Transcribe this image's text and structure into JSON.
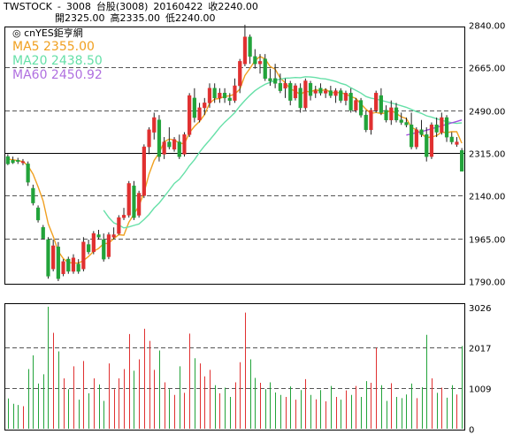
{
  "header": {
    "source": "TWSTOCK",
    "sep": "-",
    "code": "3008",
    "name": "台股(3008)",
    "date": "20160422",
    "close_label": "收2240.00",
    "open_label": "開2325.00",
    "high_label": "高2335.00",
    "low_label": "低2240.00"
  },
  "watermark": "cnYES鉅亨網",
  "legend": [
    {
      "name": "MA5",
      "value": "2355.00",
      "color": "#f0a020"
    },
    {
      "name": "MA20",
      "value": "2438.50",
      "color": "#66e0a8"
    },
    {
      "name": "MA60",
      "value": "2450.92",
      "color": "#b070e0"
    }
  ],
  "colors": {
    "up": "#e03030",
    "down": "#22a33a",
    "grid": "#555555",
    "ma5": "#f0a020",
    "ma20": "#66e0a8",
    "ma60": "#a050e0"
  },
  "chart_data": [
    {
      "type": "candlestick",
      "title": "台股(3008)",
      "y_ticks": [
        "2840.00",
        "2665.00",
        "2490.00",
        "2315.00",
        "2140.00",
        "1965.00",
        "1790.00"
      ],
      "ylim": [
        1790,
        2840
      ],
      "grid": true,
      "candles": [
        {
          "o": 2300,
          "h": 2310,
          "l": 2265,
          "c": 2270
        },
        {
          "o": 2285,
          "h": 2300,
          "l": 2270,
          "c": 2275
        },
        {
          "o": 2285,
          "h": 2295,
          "l": 2270,
          "c": 2280
        },
        {
          "o": 2275,
          "h": 2290,
          "l": 2265,
          "c": 2280
        },
        {
          "o": 2270,
          "h": 2280,
          "l": 2180,
          "c": 2195
        },
        {
          "o": 2170,
          "h": 2185,
          "l": 2100,
          "c": 2110
        },
        {
          "o": 2090,
          "h": 2100,
          "l": 2030,
          "c": 2040
        },
        {
          "o": 2010,
          "h": 2020,
          "l": 1960,
          "c": 1965
        },
        {
          "o": 1960,
          "h": 1970,
          "l": 1800,
          "c": 1810
        },
        {
          "o": 1840,
          "h": 1960,
          "l": 1830,
          "c": 1935
        },
        {
          "o": 1930,
          "h": 1950,
          "l": 1790,
          "c": 1800
        },
        {
          "o": 1820,
          "h": 1880,
          "l": 1810,
          "c": 1870
        },
        {
          "o": 1880,
          "h": 1890,
          "l": 1820,
          "c": 1830
        },
        {
          "o": 1830,
          "h": 1900,
          "l": 1820,
          "c": 1885
        },
        {
          "o": 1860,
          "h": 1880,
          "l": 1820,
          "c": 1830
        },
        {
          "o": 1840,
          "h": 1970,
          "l": 1830,
          "c": 1950
        },
        {
          "o": 1940,
          "h": 1960,
          "l": 1900,
          "c": 1910
        },
        {
          "o": 1910,
          "h": 1995,
          "l": 1900,
          "c": 1985
        },
        {
          "o": 1980,
          "h": 2000,
          "l": 1960,
          "c": 1970
        },
        {
          "o": 1960,
          "h": 1985,
          "l": 1870,
          "c": 1880
        },
        {
          "o": 1890,
          "h": 1990,
          "l": 1880,
          "c": 1980
        },
        {
          "o": 1970,
          "h": 2010,
          "l": 1960,
          "c": 1980
        },
        {
          "o": 1985,
          "h": 2060,
          "l": 1980,
          "c": 2050
        },
        {
          "o": 2050,
          "h": 2090,
          "l": 2040,
          "c": 2060
        },
        {
          "o": 2060,
          "h": 2200,
          "l": 2050,
          "c": 2190
        },
        {
          "o": 2180,
          "h": 2200,
          "l": 2040,
          "c": 2050
        },
        {
          "o": 2060,
          "h": 2160,
          "l": 2050,
          "c": 2150
        },
        {
          "o": 2140,
          "h": 2350,
          "l": 2130,
          "c": 2340
        },
        {
          "o": 2340,
          "h": 2420,
          "l": 2310,
          "c": 2410
        },
        {
          "o": 2400,
          "h": 2480,
          "l": 2370,
          "c": 2460
        },
        {
          "o": 2450,
          "h": 2470,
          "l": 2280,
          "c": 2300
        },
        {
          "o": 2310,
          "h": 2380,
          "l": 2290,
          "c": 2360
        },
        {
          "o": 2360,
          "h": 2420,
          "l": 2330,
          "c": 2340
        },
        {
          "o": 2330,
          "h": 2380,
          "l": 2320,
          "c": 2370
        },
        {
          "o": 2360,
          "h": 2390,
          "l": 2290,
          "c": 2300
        },
        {
          "o": 2310,
          "h": 2400,
          "l": 2300,
          "c": 2390
        },
        {
          "o": 2390,
          "h": 2560,
          "l": 2380,
          "c": 2550
        },
        {
          "o": 2540,
          "h": 2580,
          "l": 2440,
          "c": 2460
        },
        {
          "o": 2450,
          "h": 2520,
          "l": 2440,
          "c": 2500
        },
        {
          "o": 2500,
          "h": 2540,
          "l": 2470,
          "c": 2520
        },
        {
          "o": 2520,
          "h": 2600,
          "l": 2500,
          "c": 2580
        },
        {
          "o": 2580,
          "h": 2600,
          "l": 2520,
          "c": 2540
        },
        {
          "o": 2540,
          "h": 2580,
          "l": 2520,
          "c": 2560
        },
        {
          "o": 2560,
          "h": 2580,
          "l": 2520,
          "c": 2540
        },
        {
          "o": 2540,
          "h": 2560,
          "l": 2510,
          "c": 2530
        },
        {
          "o": 2530,
          "h": 2620,
          "l": 2520,
          "c": 2590
        },
        {
          "o": 2590,
          "h": 2700,
          "l": 2560,
          "c": 2690
        },
        {
          "o": 2680,
          "h": 2840,
          "l": 2670,
          "c": 2790
        },
        {
          "o": 2790,
          "h": 2800,
          "l": 2680,
          "c": 2710
        },
        {
          "o": 2710,
          "h": 2740,
          "l": 2660,
          "c": 2680
        },
        {
          "o": 2680,
          "h": 2720,
          "l": 2640,
          "c": 2690
        },
        {
          "o": 2700,
          "h": 2720,
          "l": 2610,
          "c": 2620
        },
        {
          "o": 2620,
          "h": 2660,
          "l": 2590,
          "c": 2610
        },
        {
          "o": 2620,
          "h": 2680,
          "l": 2580,
          "c": 2600
        },
        {
          "o": 2600,
          "h": 2640,
          "l": 2560,
          "c": 2570
        },
        {
          "o": 2580,
          "h": 2620,
          "l": 2540,
          "c": 2600
        },
        {
          "o": 2600,
          "h": 2610,
          "l": 2510,
          "c": 2530
        },
        {
          "o": 2540,
          "h": 2600,
          "l": 2530,
          "c": 2590
        },
        {
          "o": 2580,
          "h": 2600,
          "l": 2480,
          "c": 2500
        },
        {
          "o": 2500,
          "h": 2620,
          "l": 2490,
          "c": 2610
        },
        {
          "o": 2600,
          "h": 2610,
          "l": 2530,
          "c": 2550
        },
        {
          "o": 2560,
          "h": 2590,
          "l": 2540,
          "c": 2570
        },
        {
          "o": 2580,
          "h": 2600,
          "l": 2550,
          "c": 2560
        },
        {
          "o": 2560,
          "h": 2580,
          "l": 2540,
          "c": 2570
        },
        {
          "o": 2570,
          "h": 2590,
          "l": 2540,
          "c": 2550
        },
        {
          "o": 2550,
          "h": 2580,
          "l": 2520,
          "c": 2570
        },
        {
          "o": 2570,
          "h": 2580,
          "l": 2520,
          "c": 2530
        },
        {
          "o": 2530,
          "h": 2570,
          "l": 2510,
          "c": 2560
        },
        {
          "o": 2560,
          "h": 2580,
          "l": 2480,
          "c": 2490
        },
        {
          "o": 2490,
          "h": 2540,
          "l": 2480,
          "c": 2530
        },
        {
          "o": 2530,
          "h": 2540,
          "l": 2460,
          "c": 2470
        },
        {
          "o": 2470,
          "h": 2490,
          "l": 2400,
          "c": 2410
        },
        {
          "o": 2410,
          "h": 2500,
          "l": 2390,
          "c": 2490
        },
        {
          "o": 2490,
          "h": 2570,
          "l": 2480,
          "c": 2560
        },
        {
          "o": 2550,
          "h": 2580,
          "l": 2470,
          "c": 2480
        },
        {
          "o": 2490,
          "h": 2510,
          "l": 2440,
          "c": 2450
        },
        {
          "o": 2450,
          "h": 2530,
          "l": 2430,
          "c": 2500
        },
        {
          "o": 2500,
          "h": 2520,
          "l": 2440,
          "c": 2450
        },
        {
          "o": 2450,
          "h": 2480,
          "l": 2430,
          "c": 2440
        },
        {
          "o": 2440,
          "h": 2460,
          "l": 2420,
          "c": 2430
        },
        {
          "o": 2430,
          "h": 2480,
          "l": 2330,
          "c": 2340
        },
        {
          "o": 2340,
          "h": 2420,
          "l": 2330,
          "c": 2410
        },
        {
          "o": 2410,
          "h": 2450,
          "l": 2380,
          "c": 2390
        },
        {
          "o": 2390,
          "h": 2420,
          "l": 2280,
          "c": 2300
        },
        {
          "o": 2300,
          "h": 2440,
          "l": 2290,
          "c": 2430
        },
        {
          "o": 2430,
          "h": 2460,
          "l": 2380,
          "c": 2400
        },
        {
          "o": 2400,
          "h": 2480,
          "l": 2390,
          "c": 2460
        },
        {
          "o": 2460,
          "h": 2470,
          "l": 2360,
          "c": 2380
        },
        {
          "o": 2380,
          "h": 2400,
          "l": 2350,
          "c": 2360
        },
        {
          "o": 2350,
          "h": 2380,
          "l": 2340,
          "c": 2360
        },
        {
          "o": 2325,
          "h": 2335,
          "l": 2240,
          "c": 2240
        }
      ],
      "ma5": [
        2290,
        2287,
        2283,
        2280,
        2262,
        2228,
        2176,
        2118,
        2025,
        1973,
        1912,
        1882,
        1866,
        1864,
        1864,
        1874,
        1891,
        1912,
        1924,
        1943,
        1945,
        1964,
        1980,
        1978,
        2031,
        2064,
        2098,
        2152,
        2228,
        2284,
        2316,
        2361,
        2372,
        2368,
        2356,
        2352,
        2398,
        2424,
        2444,
        2472,
        2519,
        2536,
        2538,
        2547,
        2549,
        2556,
        2576,
        2632,
        2661,
        2693,
        2710,
        2700,
        2669,
        2658,
        2622,
        2602,
        2577,
        2568,
        2554,
        2568,
        2564,
        2575,
        2568,
        2576,
        2562,
        2562,
        2562,
        2556,
        2546,
        2538,
        2516,
        2494,
        2477,
        2481,
        2476,
        2480,
        2490,
        2477,
        2463,
        2456,
        2420,
        2410,
        2392,
        2378,
        2380,
        2386,
        2400,
        2398,
        2402,
        2402,
        2355
      ],
      "ma20": [
        null,
        null,
        null,
        null,
        null,
        null,
        null,
        null,
        null,
        null,
        null,
        null,
        null,
        null,
        null,
        null,
        null,
        null,
        null,
        2080,
        2051,
        2029,
        2020,
        2008,
        2012,
        2018,
        2024,
        2042,
        2063,
        2089,
        2110,
        2136,
        2163,
        2190,
        2207,
        2233,
        2263,
        2287,
        2318,
        2344,
        2368,
        2393,
        2419,
        2441,
        2460,
        2480,
        2507,
        2530,
        2551,
        2570,
        2584,
        2596,
        2604,
        2612,
        2617,
        2621,
        2622,
        2624,
        2623,
        2627,
        2626,
        2624,
        2620,
        2618,
        2613,
        2608,
        2600,
        2594,
        2582,
        2571,
        2560,
        2546,
        2539,
        2536,
        2530,
        2525,
        2520,
        2514,
        2508,
        2502,
        2493,
        2484,
        2477,
        2467,
        2462,
        2455,
        2449,
        2443,
        2439,
        2436,
        2438
      ],
      "ma60": [
        null,
        null,
        null,
        null,
        null,
        null,
        null,
        null,
        null,
        null,
        null,
        null,
        null,
        null,
        null,
        null,
        null,
        null,
        null,
        null,
        null,
        null,
        null,
        null,
        null,
        null,
        null,
        null,
        null,
        null,
        null,
        null,
        null,
        null,
        null,
        null,
        null,
        null,
        null,
        null,
        null,
        null,
        null,
        null,
        null,
        null,
        null,
        null,
        null,
        null,
        null,
        null,
        null,
        null,
        null,
        null,
        null,
        null,
        null,
        null,
        null,
        null,
        null,
        null,
        null,
        null,
        null,
        null,
        null,
        null,
        null,
        null,
        null,
        null,
        null,
        null,
        null,
        null,
        null,
        2388,
        2393,
        2398,
        2402,
        2408,
        2414,
        2420,
        2426,
        2432,
        2438,
        2444,
        2450
      ]
    },
    {
      "type": "bar",
      "y_ticks": [
        "3026",
        "2017",
        "1009",
        "0"
      ],
      "ylim": [
        0,
        3026
      ],
      "volume": [
        750,
        620,
        590,
        560,
        1480,
        1820,
        1120,
        1350,
        3026,
        2380,
        1920,
        1250,
        980,
        1550,
        720,
        1680,
        880,
        1250,
        1100,
        690,
        1620,
        980,
        1250,
        1480,
        2350,
        1440,
        1720,
        2480,
        2180,
        1460,
        1940,
        1150,
        980,
        840,
        1550,
        890,
        2360,
        1750,
        1620,
        1300,
        1460,
        1080,
        880,
        1020,
        790,
        1150,
        1650,
        2880,
        1720,
        1260,
        1140,
        980,
        1150,
        900,
        840,
        790,
        1050,
        720,
        960,
        1230,
        840,
        730,
        960,
        680,
        1060,
        790,
        720,
        950,
        840,
        1060,
        790,
        1180,
        1140,
        2010,
        1080,
        690,
        1130,
        790,
        760,
        850,
        1120,
        760,
        1030,
        2330,
        1250,
        890,
        1020,
        770,
        1080,
        850,
        2050
      ]
    }
  ]
}
